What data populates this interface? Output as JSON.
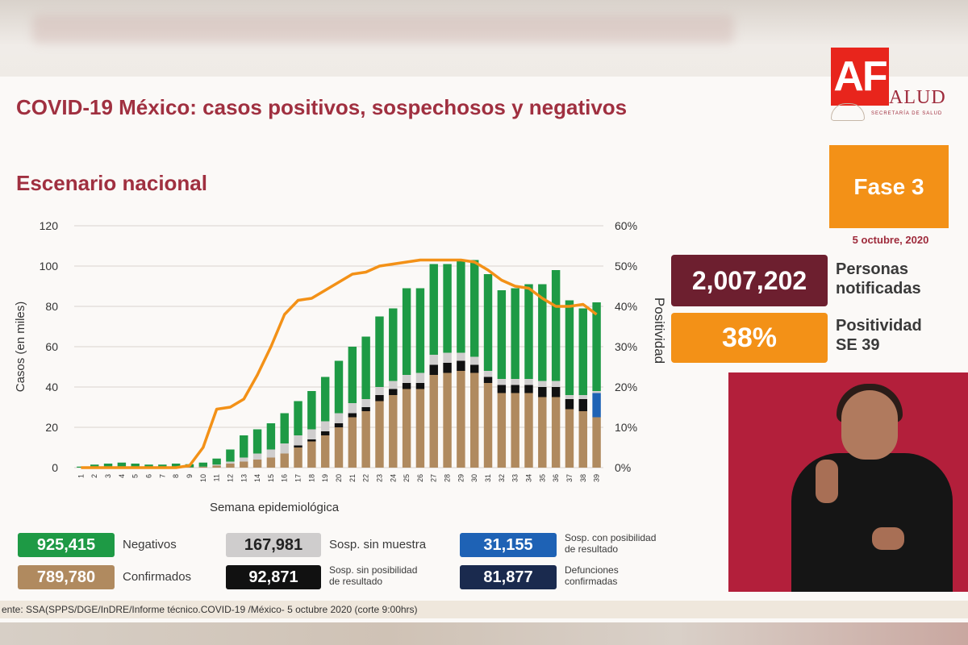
{
  "slide": {
    "title": "COVID-19 México: casos positivos, sospechosos y negativos",
    "subtitle": "Escenario nacional",
    "fase": "Fase 3",
    "date": "5 octubre, 2020",
    "logo_text": "AF",
    "salud_text": "ALUD",
    "salud_sub": "SECRETARÍA DE SALUD",
    "stats": {
      "notificadas_value": "2,007,202",
      "notificadas_label_1": "Personas",
      "notificadas_label_2": "notificadas",
      "positividad_value": "38%",
      "positividad_label_1": "Positividad",
      "positividad_label_2": "SE 39"
    },
    "footer": "ente: SSA(SPPS/DGE/InDRE/Informe técnico.COVID-19 /México- 5 octubre 2020 (corte 9:00hrs)"
  },
  "legend": [
    {
      "value": "925,415",
      "label": "Negativos",
      "color": "#1e9a45"
    },
    {
      "value": "789,780",
      "label": "Confirmados",
      "color": "#b08a5f"
    },
    {
      "value": "167,981",
      "label": "Sosp. sin muestra",
      "color": "#cfcdcd",
      "text_color": "#222222"
    },
    {
      "value": "92,871",
      "label_1": "Sosp. sin posibilidad",
      "label_2": "de resultado",
      "color": "#111111"
    },
    {
      "value": "31,155",
      "label_1": "Sosp. con posibilidad",
      "label_2": "de resultado",
      "color": "#1e62b5"
    },
    {
      "value": "81,877",
      "label_1": "Defunciones",
      "label_2": "confirmadas",
      "color": "#1a2a4e"
    }
  ],
  "chart_data": {
    "type": "bar",
    "stacked": true,
    "xlabel": "Semana epidemiológica",
    "ylabel": "Casos (en miles)",
    "y2label": "Positividad",
    "ylim": [
      0,
      120
    ],
    "y2lim": [
      0,
      60
    ],
    "yticks": [
      "0",
      "20",
      "40",
      "60",
      "80",
      "100",
      "120"
    ],
    "y2ticks": [
      "0%",
      "10%",
      "20%",
      "30%",
      "40%",
      "50%",
      "60%"
    ],
    "categories": [
      "1",
      "2",
      "3",
      "4",
      "5",
      "6",
      "7",
      "8",
      "9",
      "10",
      "11",
      "12",
      "13",
      "14",
      "15",
      "16",
      "17",
      "18",
      "19",
      "20",
      "21",
      "22",
      "23",
      "24",
      "25",
      "26",
      "27",
      "28",
      "29",
      "30",
      "31",
      "32",
      "33",
      "34",
      "35",
      "36",
      "37",
      "38",
      "39"
    ],
    "series": [
      {
        "name": "Confirmados",
        "color": "#b08a5f",
        "values": [
          0,
          0,
          0,
          0,
          0,
          0,
          0,
          0,
          0.2,
          0.5,
          1,
          2,
          3,
          4,
          5,
          7,
          10,
          13,
          16,
          20,
          25,
          28,
          33,
          36,
          39,
          39,
          46,
          47,
          48,
          47,
          42,
          37,
          37,
          37,
          35,
          35,
          29,
          28,
          25
        ]
      },
      {
        "name": "Sosp. sin posibilidad de resultado",
        "color": "#111111",
        "values": [
          0,
          0,
          0,
          0,
          0,
          0,
          0,
          0,
          0,
          0,
          0,
          0,
          0,
          0,
          0,
          0,
          1,
          1,
          2,
          2,
          2,
          2,
          3,
          3,
          3,
          3,
          5,
          5,
          5,
          4,
          3,
          4,
          4,
          4,
          5,
          5,
          5,
          6,
          0
        ]
      },
      {
        "name": "Sosp. con posibilidad de resultado",
        "color": "#1e62b5",
        "values": [
          0,
          0,
          0,
          0,
          0,
          0,
          0,
          0,
          0,
          0,
          0,
          0,
          0,
          0,
          0,
          0,
          0,
          0,
          0,
          0,
          0,
          0,
          0,
          0,
          0,
          0,
          0,
          0,
          0,
          0,
          0,
          0,
          0,
          0,
          0,
          0,
          0,
          0,
          12
        ]
      },
      {
        "name": "Sosp. sin muestra",
        "color": "#cfcdcd",
        "values": [
          0,
          0,
          0,
          0,
          0,
          0,
          0,
          0,
          0,
          0,
          0.5,
          1,
          2,
          3,
          4,
          5,
          5,
          5,
          5,
          5,
          5,
          4,
          4,
          4,
          4,
          5,
          5,
          5,
          4,
          4,
          3,
          3,
          3,
          3,
          3,
          3,
          2,
          2,
          1
        ]
      },
      {
        "name": "Negativos",
        "color": "#1e9a45",
        "values": [
          0.5,
          1.5,
          2,
          2.5,
          2,
          1.5,
          1.5,
          2,
          1.5,
          2,
          3,
          6,
          11,
          12,
          13,
          15,
          17,
          19,
          22,
          26,
          28,
          31,
          35,
          36,
          43,
          42,
          45,
          44,
          46,
          48,
          48,
          44,
          45,
          47,
          48,
          55,
          47,
          43,
          44
        ]
      },
      {
        "name": "Positividad",
        "color": "#f39117",
        "type": "line",
        "axis": "y2",
        "values": [
          0,
          0,
          0,
          0,
          0,
          0,
          0,
          0,
          0.5,
          5,
          14.5,
          15,
          17,
          23,
          30,
          38,
          41.5,
          42,
          44,
          46,
          48,
          48.5,
          50,
          50.5,
          51,
          51.5,
          51.5,
          51.5,
          51.5,
          51,
          49,
          46.5,
          45,
          44.5,
          42,
          40,
          40,
          40.5,
          38
        ]
      }
    ]
  }
}
